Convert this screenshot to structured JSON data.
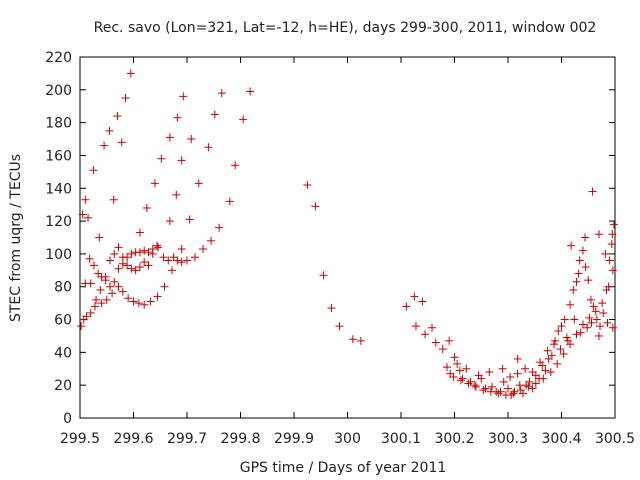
{
  "chart_data": {
    "type": "scatter",
    "title": "Rec. savo (Lon=321, Lat=-12, h=HE), days 299-300, 2011, window 002",
    "xlabel": "GPS time / Days of year 2011",
    "ylabel": "STEC from uqrg / TECUs",
    "xlim": [
      299.5,
      300.5
    ],
    "ylim": [
      0,
      220
    ],
    "x_ticks": [
      "299.5",
      "299.6",
      "299.7",
      "299.8",
      "299.9",
      "300",
      "300.1",
      "300.2",
      "300.3",
      "300.4",
      "300.5"
    ],
    "y_ticks": [
      "0",
      "20",
      "40",
      "60",
      "80",
      "100",
      "120",
      "140",
      "160",
      "180",
      "200",
      "220"
    ],
    "grid": false,
    "marker": "plus",
    "marker_color": "#cc0000",
    "series": [
      {
        "points": [
          [
            299.505,
            124
          ],
          [
            299.51,
            82
          ],
          [
            299.518,
            97
          ],
          [
            299.526,
            93
          ],
          [
            299.534,
            88
          ],
          [
            299.54,
            86
          ],
          [
            299.548,
            84
          ],
          [
            299.556,
            80
          ],
          [
            299.564,
            83
          ],
          [
            299.572,
            91
          ],
          [
            299.58,
            94
          ],
          [
            299.588,
            98
          ],
          [
            299.596,
            100
          ],
          [
            299.604,
            101
          ],
          [
            299.612,
            101
          ],
          [
            299.62,
            102
          ],
          [
            299.628,
            101
          ],
          [
            299.636,
            103
          ],
          [
            299.644,
            105
          ],
          [
            299.502,
            56
          ],
          [
            299.507,
            60
          ],
          [
            299.512,
            62
          ],
          [
            299.52,
            64
          ],
          [
            299.528,
            68
          ],
          [
            299.538,
            78
          ],
          [
            299.548,
            86
          ],
          [
            299.556,
            96
          ],
          [
            299.564,
            100
          ],
          [
            299.572,
            104
          ],
          [
            299.58,
            98
          ],
          [
            299.588,
            93
          ],
          [
            299.596,
            91
          ],
          [
            299.604,
            90
          ],
          [
            299.612,
            92
          ],
          [
            299.62,
            95
          ],
          [
            299.628,
            93
          ],
          [
            299.636,
            100
          ],
          [
            299.646,
            104
          ],
          [
            299.656,
            98
          ],
          [
            299.665,
            96
          ],
          [
            299.675,
            98
          ],
          [
            299.682,
            96
          ],
          [
            299.69,
            95
          ],
          [
            299.7,
            96
          ],
          [
            299.715,
            98
          ],
          [
            299.73,
            103
          ],
          [
            299.745,
            108
          ],
          [
            299.76,
            116
          ],
          [
            299.52,
            82
          ],
          [
            299.53,
            72
          ],
          [
            299.54,
            70
          ],
          [
            299.55,
            72
          ],
          [
            299.56,
            76
          ],
          [
            299.572,
            80
          ],
          [
            299.58,
            77
          ],
          [
            299.59,
            73
          ],
          [
            299.6,
            71
          ],
          [
            299.61,
            70
          ],
          [
            299.62,
            69
          ],
          [
            299.632,
            71
          ],
          [
            299.645,
            74
          ],
          [
            299.658,
            80
          ],
          [
            299.672,
            90
          ],
          [
            299.69,
            103
          ],
          [
            299.705,
            121
          ],
          [
            299.722,
            143
          ],
          [
            299.74,
            165
          ],
          [
            299.752,
            185
          ],
          [
            299.765,
            198
          ],
          [
            299.51,
            133
          ],
          [
            299.515,
            122
          ],
          [
            299.525,
            151
          ],
          [
            299.536,
            110
          ],
          [
            299.545,
            166
          ],
          [
            299.555,
            175
          ],
          [
            299.563,
            133
          ],
          [
            299.57,
            184
          ],
          [
            299.578,
            168
          ],
          [
            299.585,
            195
          ],
          [
            299.595,
            210
          ],
          [
            299.612,
            113
          ],
          [
            299.625,
            128
          ],
          [
            299.64,
            143
          ],
          [
            299.652,
            158
          ],
          [
            299.668,
            171
          ],
          [
            299.682,
            183
          ],
          [
            299.693,
            196
          ],
          [
            299.708,
            170
          ],
          [
            299.69,
            157
          ],
          [
            299.68,
            136
          ],
          [
            299.668,
            120
          ],
          [
            299.78,
            132
          ],
          [
            299.79,
            154
          ],
          [
            299.805,
            182
          ],
          [
            299.818,
            199
          ],
          [
            299.925,
            142
          ],
          [
            299.94,
            129
          ],
          [
            299.955,
            87
          ],
          [
            299.97,
            67
          ],
          [
            299.985,
            56
          ],
          [
            300.01,
            48
          ],
          [
            300.025,
            47
          ],
          [
            300.11,
            68
          ],
          [
            300.125,
            74
          ],
          [
            300.14,
            71
          ],
          [
            300.128,
            56
          ],
          [
            300.145,
            51
          ],
          [
            300.158,
            55
          ],
          [
            300.165,
            46
          ],
          [
            300.178,
            42
          ],
          [
            300.19,
            47
          ],
          [
            300.186,
            31
          ],
          [
            300.192,
            27
          ],
          [
            300.2,
            37
          ],
          [
            300.205,
            33
          ],
          [
            300.21,
            29
          ],
          [
            300.215,
            24
          ],
          [
            300.222,
            30
          ],
          [
            300.23,
            22
          ],
          [
            300.238,
            20
          ],
          [
            300.245,
            26
          ],
          [
            300.25,
            24
          ],
          [
            300.258,
            18
          ],
          [
            300.265,
            28
          ],
          [
            300.27,
            19
          ],
          [
            300.278,
            16
          ],
          [
            300.286,
            16
          ],
          [
            300.292,
            22
          ],
          [
            300.3,
            18
          ],
          [
            300.306,
            14
          ],
          [
            300.312,
            16
          ],
          [
            300.318,
            27
          ],
          [
            300.322,
            20
          ],
          [
            300.328,
            15
          ],
          [
            300.334,
            20
          ],
          [
            300.34,
            22
          ],
          [
            300.346,
            18
          ],
          [
            300.352,
            26
          ],
          [
            300.358,
            24
          ],
          [
            300.364,
            32
          ],
          [
            300.37,
            29
          ],
          [
            300.376,
            36
          ],
          [
            300.382,
            38
          ],
          [
            300.388,
            47
          ],
          [
            300.394,
            53
          ],
          [
            300.4,
            56
          ],
          [
            300.406,
            60
          ],
          [
            300.41,
            49
          ],
          [
            300.416,
            69
          ],
          [
            300.422,
            78
          ],
          [
            300.428,
            83
          ],
          [
            300.434,
            96
          ],
          [
            300.44,
            102
          ],
          [
            300.445,
            92
          ],
          [
            300.45,
            84
          ],
          [
            300.455,
            72
          ],
          [
            300.46,
            68
          ],
          [
            300.466,
            60
          ],
          [
            300.472,
            56
          ],
          [
            300.478,
            64
          ],
          [
            300.484,
            78
          ],
          [
            300.49,
            96
          ],
          [
            300.495,
            112
          ],
          [
            300.498,
            118
          ],
          [
            300.198,
            25
          ],
          [
            300.212,
            23
          ],
          [
            300.226,
            21
          ],
          [
            300.24,
            19
          ],
          [
            300.254,
            17
          ],
          [
            300.268,
            16
          ],
          [
            300.282,
            15
          ],
          [
            300.296,
            14
          ],
          [
            300.31,
            15
          ],
          [
            300.324,
            17
          ],
          [
            300.338,
            19
          ],
          [
            300.352,
            21
          ],
          [
            300.366,
            24
          ],
          [
            300.38,
            28
          ],
          [
            300.392,
            33
          ],
          [
            300.404,
            39
          ],
          [
            300.416,
            45
          ],
          [
            300.428,
            51
          ],
          [
            300.44,
            57
          ],
          [
            300.452,
            61
          ],
          [
            300.464,
            65
          ],
          [
            300.476,
            70
          ],
          [
            300.488,
            80
          ],
          [
            300.496,
            90
          ],
          [
            300.29,
            30
          ],
          [
            300.304,
            25
          ],
          [
            300.318,
            36
          ],
          [
            300.332,
            30
          ],
          [
            300.346,
            28
          ],
          [
            300.36,
            34
          ],
          [
            300.374,
            41
          ],
          [
            300.386,
            45
          ],
          [
            300.398,
            42
          ],
          [
            300.412,
            47
          ],
          [
            300.424,
            60
          ],
          [
            300.436,
            52
          ],
          [
            300.448,
            55
          ],
          [
            300.458,
            138
          ],
          [
            300.47,
            112
          ],
          [
            300.482,
            100
          ],
          [
            300.494,
            106
          ],
          [
            300.418,
            105
          ],
          [
            300.432,
            88
          ],
          [
            300.444,
            110
          ],
          [
            300.456,
            58
          ],
          [
            300.47,
            50
          ],
          [
            300.486,
            58
          ],
          [
            300.496,
            55
          ]
        ]
      }
    ]
  }
}
